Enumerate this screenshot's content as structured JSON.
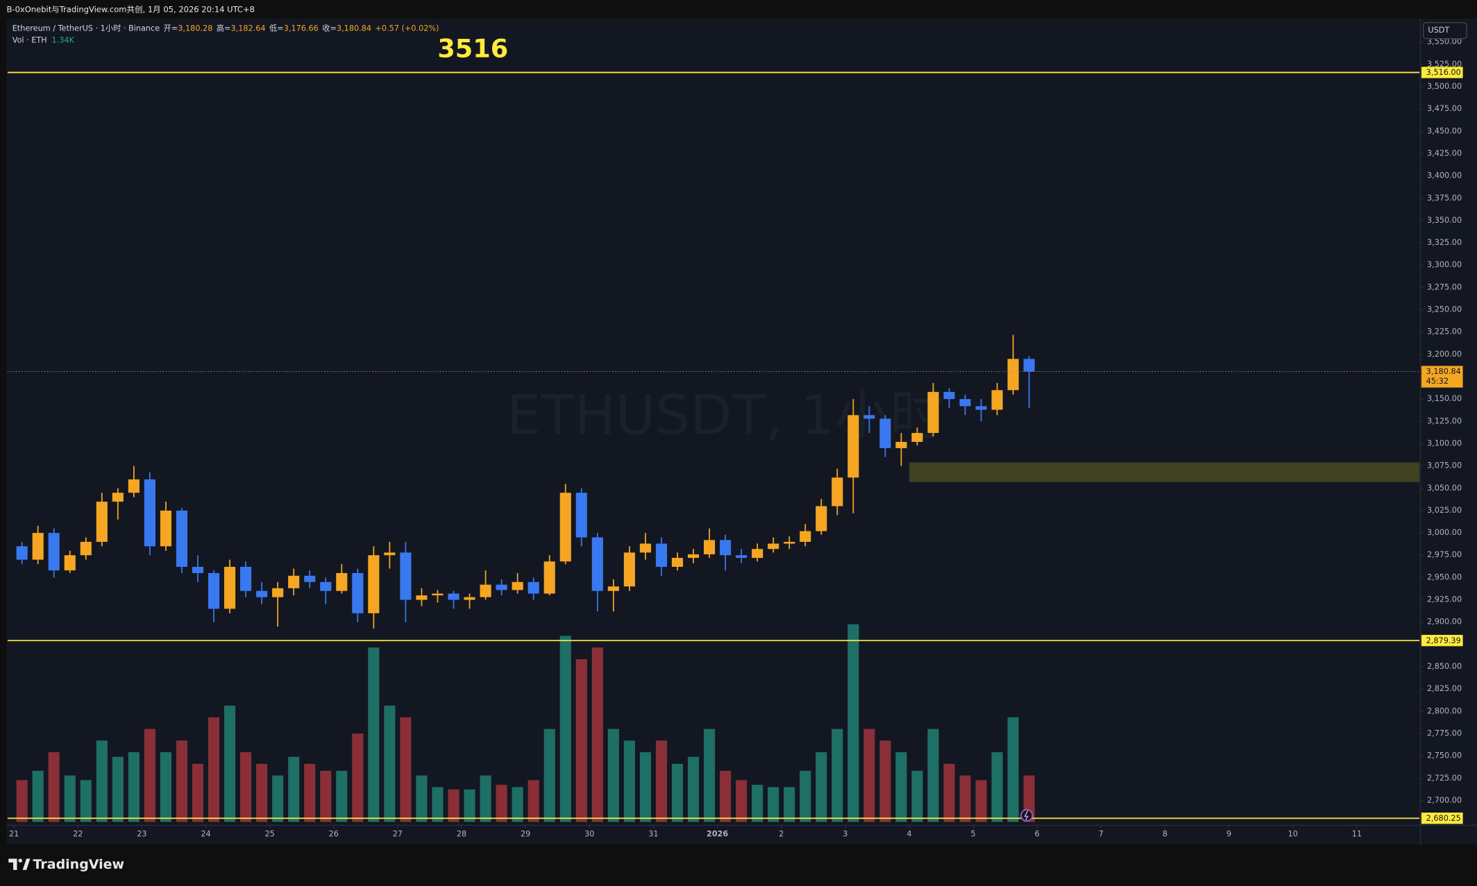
{
  "header": {
    "text": "B-0xOnebit与TradingView.com共创, 1月 05, 2026 20:14 UTC+8"
  },
  "legend": {
    "symbol": "Ethereum / TetherUS · 1小时 · Binance",
    "ohlc": [
      {
        "label": "开=",
        "value": "3,180.28"
      },
      {
        "label": "高=",
        "value": "3,182.64"
      },
      {
        "label": "低=",
        "value": "3,176.66"
      },
      {
        "label": "收=",
        "value": "3,180.84"
      }
    ],
    "change": "+0.57 (+0.02%)",
    "volume_label": "Vol · ETH",
    "volume_value": "1.34K"
  },
  "currency": "USDT",
  "watermark": "ETHUSDT, 1小时",
  "annotation": "3516",
  "footer": {
    "brand": "TradingView"
  },
  "chart_data": {
    "type": "candlestick",
    "up_color": "#f5a623",
    "down_color": "#3a78f0",
    "volume_up_color": "#1e6f66",
    "volume_down_color": "#8a2f38",
    "x": [
      0.125,
      0.375,
      0.625,
      0.875,
      1.125,
      1.375,
      1.625,
      1.875,
      2.125,
      2.375,
      2.625,
      2.875,
      3.125,
      3.375,
      3.625,
      3.875,
      4.125,
      4.375,
      4.625,
      4.875,
      5.125,
      5.375,
      5.625,
      5.875,
      6.125,
      6.375,
      6.625,
      6.875,
      7.125,
      7.375,
      7.625,
      7.875,
      8.125,
      8.375,
      8.625,
      8.875,
      9.125,
      9.375,
      9.625,
      9.875,
      10.125,
      10.375,
      10.625,
      10.875,
      11.125,
      11.375,
      11.625,
      11.875,
      12.125,
      12.375,
      12.625,
      12.875,
      13.125,
      13.375,
      13.625,
      13.875,
      14.125,
      14.375,
      14.625,
      14.875,
      15.125,
      15.375,
      15.625,
      15.875
    ],
    "open": [
      2985,
      2970,
      3000,
      2958,
      2975,
      2990,
      3035,
      3045,
      3060,
      2985,
      3025,
      2962,
      2955,
      2915,
      2962,
      2935,
      2928,
      2938,
      2952,
      2945,
      2935,
      2955,
      2910,
      2975,
      2978,
      2925,
      2930,
      2932,
      2925,
      2928,
      2942,
      2936,
      2945,
      2932,
      2968,
      3045,
      2995,
      2935,
      2940,
      2978,
      2988,
      2962,
      2972,
      2976,
      2992,
      2975,
      2972,
      2982,
      2988,
      2990,
      3002,
      3030,
      3062,
      3132,
      3128,
      3095,
      3102,
      3112,
      3158,
      3150,
      3142,
      3138,
      3160,
      3195
    ],
    "high": [
      2990,
      3008,
      3005,
      2980,
      2995,
      3045,
      3050,
      3075,
      3068,
      3035,
      3028,
      2975,
      2958,
      2970,
      2968,
      2945,
      2945,
      2960,
      2958,
      2950,
      2965,
      2960,
      2985,
      2990,
      2990,
      2938,
      2936,
      2935,
      2932,
      2958,
      2948,
      2955,
      2950,
      2975,
      3055,
      3050,
      3000,
      2948,
      2985,
      3000,
      2995,
      2978,
      2982,
      3005,
      2998,
      2982,
      2988,
      2995,
      2996,
      3010,
      3038,
      3072,
      3150,
      3142,
      3132,
      3112,
      3118,
      3168,
      3162,
      3155,
      3150,
      3168,
      3222,
      3198
    ],
    "low": [
      2965,
      2965,
      2950,
      2955,
      2970,
      2985,
      3015,
      3040,
      2975,
      2980,
      2955,
      2945,
      2900,
      2910,
      2928,
      2920,
      2895,
      2930,
      2938,
      2920,
      2932,
      2900,
      2893,
      2960,
      2900,
      2918,
      2922,
      2915,
      2915,
      2925,
      2930,
      2932,
      2925,
      2930,
      2965,
      2985,
      2912,
      2912,
      2935,
      2970,
      2952,
      2958,
      2966,
      2972,
      2958,
      2966,
      2968,
      2978,
      2982,
      2985,
      2998,
      3020,
      3022,
      3112,
      3085,
      3075,
      3098,
      3108,
      3140,
      3132,
      3125,
      3132,
      3155,
      3140
    ],
    "close": [
      2970,
      3000,
      2958,
      2975,
      2990,
      3035,
      3045,
      3060,
      2985,
      3025,
      2962,
      2955,
      2915,
      2962,
      2935,
      2928,
      2938,
      2952,
      2945,
      2935,
      2955,
      2910,
      2975,
      2978,
      2925,
      2930,
      2932,
      2925,
      2928,
      2942,
      2936,
      2945,
      2932,
      2968,
      3045,
      2995,
      2935,
      2940,
      2978,
      2988,
      2962,
      2972,
      2976,
      2992,
      2975,
      2972,
      2982,
      2988,
      2990,
      3002,
      3030,
      3062,
      3132,
      3128,
      3095,
      3102,
      3112,
      3158,
      3150,
      3142,
      3138,
      3160,
      3195,
      3180.84
    ],
    "volume": [
      18000,
      22000,
      30000,
      20000,
      18000,
      35000,
      28000,
      30000,
      40000,
      30000,
      35000,
      25000,
      45000,
      50000,
      30000,
      25000,
      20000,
      28000,
      25000,
      22000,
      22000,
      38000,
      75000,
      50000,
      45000,
      20000,
      15000,
      14000,
      14000,
      20000,
      16000,
      15000,
      18000,
      40000,
      80000,
      70000,
      75000,
      40000,
      35000,
      30000,
      35000,
      25000,
      28000,
      40000,
      22000,
      18000,
      16000,
      15000,
      15000,
      22000,
      30000,
      40000,
      85000,
      40000,
      35000,
      30000,
      22000,
      40000,
      25000,
      20000,
      18000,
      30000,
      45000,
      20000
    ],
    "xlim": [
      -0.1,
      21.98
    ],
    "xticks": [
      {
        "value": 0,
        "label": "21"
      },
      {
        "value": 1,
        "label": "22"
      },
      {
        "value": 2,
        "label": "23"
      },
      {
        "value": 3,
        "label": "24"
      },
      {
        "value": 4,
        "label": "25"
      },
      {
        "value": 5,
        "label": "26"
      },
      {
        "value": 6,
        "label": "27"
      },
      {
        "value": 7,
        "label": "28"
      },
      {
        "value": 8,
        "label": "29"
      },
      {
        "value": 9,
        "label": "30"
      },
      {
        "value": 10,
        "label": "31"
      },
      {
        "value": 11,
        "label": "2026"
      },
      {
        "value": 12,
        "label": "2"
      },
      {
        "value": 13,
        "label": "3"
      },
      {
        "value": 14,
        "label": "4"
      },
      {
        "value": 15,
        "label": "5"
      },
      {
        "value": 16,
        "label": "6"
      },
      {
        "value": 17,
        "label": "7"
      },
      {
        "value": 18,
        "label": "8"
      },
      {
        "value": 19,
        "label": "9"
      },
      {
        "value": 20,
        "label": "10"
      },
      {
        "value": 21,
        "label": "11"
      }
    ],
    "ylim": [
      2672.9,
      3576.1
    ],
    "yticks": [
      {
        "value": 2700,
        "label": "2,700.00"
      },
      {
        "value": 2725,
        "label": "2,725.00"
      },
      {
        "value": 2750,
        "label": "2,750.00"
      },
      {
        "value": 2775,
        "label": "2,775.00"
      },
      {
        "value": 2800,
        "label": "2,800.00"
      },
      {
        "value": 2825,
        "label": "2,825.00"
      },
      {
        "value": 2850,
        "label": "2,850.00"
      },
      {
        "value": 2900,
        "label": "2,900.00"
      },
      {
        "value": 2925,
        "label": "2,925.00"
      },
      {
        "value": 2950,
        "label": "2,950.00"
      },
      {
        "value": 2975,
        "label": "2,975.00"
      },
      {
        "value": 3000,
        "label": "3,000.00"
      },
      {
        "value": 3025,
        "label": "3,025.00"
      },
      {
        "value": 3050,
        "label": "3,050.00"
      },
      {
        "value": 3075,
        "label": "3,075.00"
      },
      {
        "value": 3100,
        "label": "3,100.00"
      },
      {
        "value": 3125,
        "label": "3,125.00"
      },
      {
        "value": 3150,
        "label": "3,150.00"
      },
      {
        "value": 3200,
        "label": "3,200.00"
      },
      {
        "value": 3225,
        "label": "3,225.00"
      },
      {
        "value": 3250,
        "label": "3,250.00"
      },
      {
        "value": 3275,
        "label": "3,275.00"
      },
      {
        "value": 3300,
        "label": "3,300.00"
      },
      {
        "value": 3325,
        "label": "3,325.00"
      },
      {
        "value": 3350,
        "label": "3,350.00"
      },
      {
        "value": 3375,
        "label": "3,375.00"
      },
      {
        "value": 3400,
        "label": "3,400.00"
      },
      {
        "value": 3425,
        "label": "3,425.00"
      },
      {
        "value": 3450,
        "label": "3,450.00"
      },
      {
        "value": 3475,
        "label": "3,475.00"
      },
      {
        "value": 3500,
        "label": "3,500.00"
      },
      {
        "value": 3525,
        "label": "3,525.00"
      },
      {
        "value": 3550,
        "label": "3,550.00"
      }
    ],
    "grid": false,
    "hlines": {
      "color": "#ffeb3b",
      "lines": [
        {
          "value": 3516,
          "label": "3,516.00"
        },
        {
          "value": 2879.39,
          "label": "2,879.39"
        },
        {
          "value": 2680.25,
          "label": "2,680.25"
        }
      ]
    },
    "last_price": {
      "value": 3180.84,
      "label": "3,180.84",
      "countdown": "45:32",
      "color": "#f5a623"
    },
    "zone": {
      "x_start": 14,
      "low": 3057,
      "high": 3079,
      "color": "#4a4a22"
    }
  }
}
